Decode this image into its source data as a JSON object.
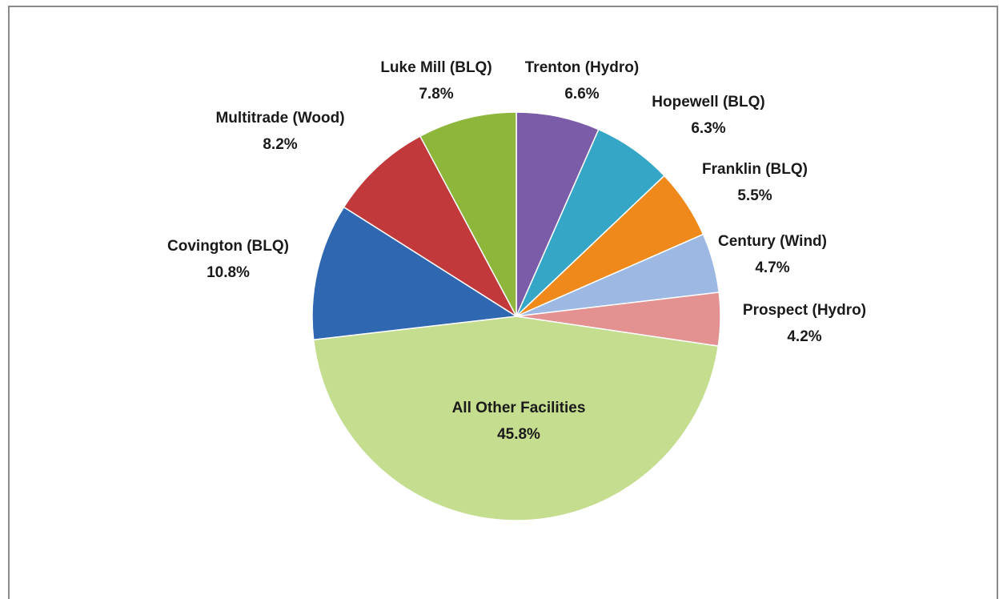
{
  "chart_data": {
    "type": "pie",
    "categories": [
      "Trenton (Hydro)",
      "Hopewell (BLQ)",
      "Franklin (BLQ)",
      "Century (Wind)",
      "Prospect (Hydro)",
      "All Other Facilities",
      "Covington (BLQ)",
      "Multitrade (Wood)",
      "Luke Mill (BLQ)"
    ],
    "values": [
      6.6,
      6.3,
      5.5,
      4.7,
      4.2,
      45.8,
      10.8,
      8.2,
      7.8
    ],
    "value_labels": [
      "6.6%",
      "6.3%",
      "5.5%",
      "4.7%",
      "4.2%",
      "45.8%",
      "10.8%",
      "8.2%",
      "7.8%"
    ],
    "colors": [
      "#7b5ca8",
      "#36a6c6",
      "#f0891c",
      "#9db9e3",
      "#e39191",
      "#c5dd8f",
      "#3067b1",
      "#c2393b",
      "#8db63b"
    ]
  }
}
